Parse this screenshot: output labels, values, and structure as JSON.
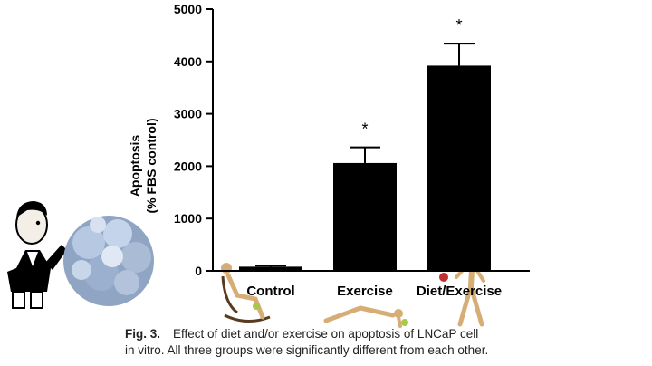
{
  "chart_data": {
    "type": "bar",
    "categories": [
      "Control",
      "Exercise",
      "Diet/Exercise"
    ],
    "values": [
      80,
      2060,
      3920
    ],
    "errors": [
      20,
      300,
      420
    ],
    "significance": [
      "",
      "*",
      "*"
    ],
    "ylabel_line1": "Apoptosis",
    "ylabel_line2": "(% FBS control)",
    "ylim": [
      0,
      5000
    ],
    "yticks": [
      0,
      1000,
      2000,
      3000,
      4000,
      5000
    ],
    "bar_color": "#000000",
    "grid": false
  },
  "caption": {
    "fig_label": "Fig. 3.",
    "line1": "Effect of diet and/or exercise on apoptosis of LNCaP cell",
    "line2": "in vitro. All three groups were significantly different from each other."
  },
  "illustrations": [
    "cartoon-man-icon",
    "cancer-cell-cluster-icon",
    "mannequin-rocking-chair-icon",
    "mannequin-pushup-icon",
    "mannequin-walking-icon"
  ]
}
